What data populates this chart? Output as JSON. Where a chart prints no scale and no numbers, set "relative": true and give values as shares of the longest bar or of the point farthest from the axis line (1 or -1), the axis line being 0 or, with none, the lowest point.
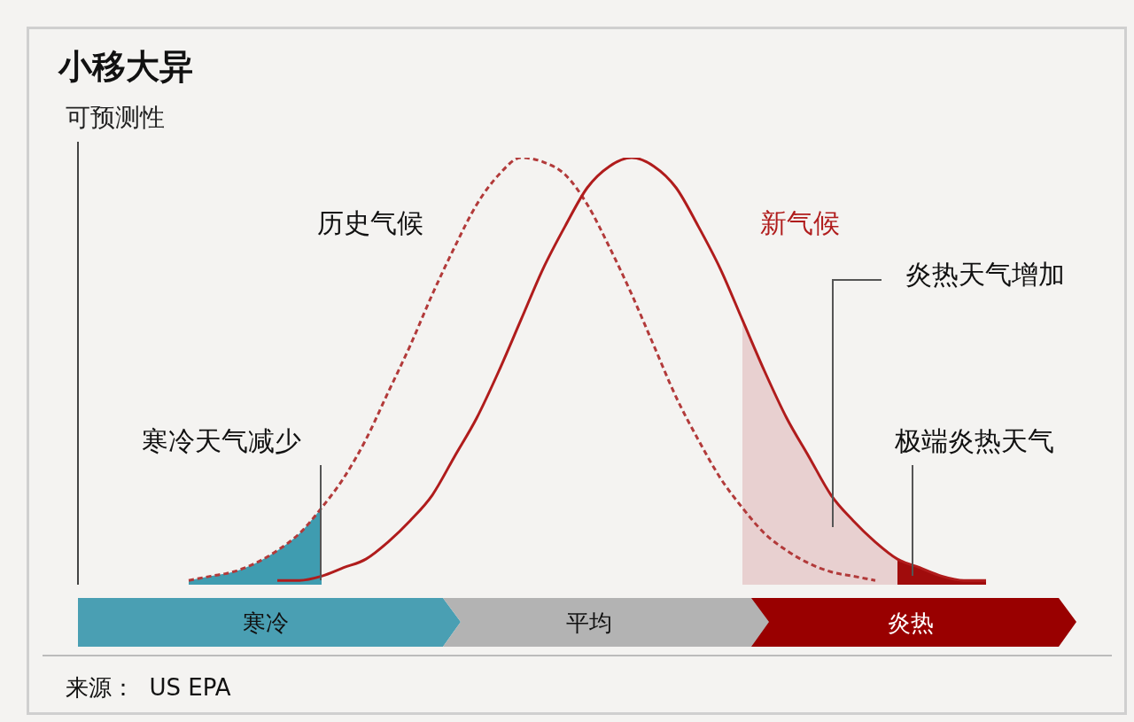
{
  "chart_data": {
    "type": "line",
    "title": "小移大异",
    "ylabel": "可预测性",
    "relative": true,
    "categories": [
      null,
      null,
      null,
      null,
      null,
      null,
      null,
      null,
      null,
      null,
      null,
      null,
      null,
      null,
      null,
      null,
      null,
      null,
      null,
      null,
      null,
      null,
      null,
      null,
      null,
      null,
      null,
      null,
      null,
      null,
      null,
      null,
      null,
      null,
      null,
      null,
      null,
      null,
      null,
      null,
      null,
      null,
      null,
      null,
      null
    ],
    "series": [
      {
        "name": "历史气候",
        "line_style": "dashed",
        "color": "#b23a3a",
        "values": [
          null,
          null,
          null,
          null,
          null,
          0.01,
          0.02,
          0.03,
          0.05,
          0.08,
          0.12,
          0.18,
          0.25,
          0.34,
          0.45,
          0.56,
          0.68,
          0.79,
          0.89,
          0.96,
          1.0,
          0.99,
          0.96,
          0.89,
          0.79,
          0.68,
          0.56,
          0.44,
          0.34,
          0.25,
          0.18,
          0.12,
          0.08,
          0.05,
          0.03,
          0.02,
          0.01,
          null,
          null,
          null,
          null,
          null,
          null,
          null,
          null
        ]
      },
      {
        "name": "新气候",
        "line_style": "solid",
        "color": "#b01c1c",
        "values": [
          null,
          null,
          null,
          null,
          null,
          null,
          null,
          null,
          null,
          0.01,
          0.01,
          0.02,
          0.04,
          0.06,
          0.1,
          0.15,
          0.21,
          0.3,
          0.39,
          0.5,
          0.62,
          0.74,
          0.84,
          0.93,
          0.98,
          1.0,
          0.98,
          0.93,
          0.84,
          0.74,
          0.62,
          0.5,
          0.39,
          0.3,
          0.21,
          0.15,
          0.1,
          0.06,
          0.04,
          0.02,
          0.01,
          0.01,
          null,
          null,
          null
        ]
      },
      {
        "name": "寒冷天气减少",
        "type": "area",
        "color": "#3f9cb0",
        "values": [
          null,
          null,
          null,
          null,
          null,
          0.01,
          0.02,
          0.03,
          0.05,
          0.08,
          0.12,
          0.18,
          null,
          null,
          null,
          null,
          null,
          null,
          null,
          null,
          null,
          null,
          null,
          null,
          null,
          null,
          null,
          null,
          null,
          null,
          null,
          null,
          null,
          null,
          null,
          null,
          null,
          null,
          null,
          null,
          null,
          null,
          null,
          null,
          null
        ]
      },
      {
        "name": "炎热天气增加",
        "type": "area",
        "color": "#e8d0d0",
        "values": [
          null,
          null,
          null,
          null,
          null,
          null,
          null,
          null,
          null,
          null,
          null,
          null,
          null,
          null,
          null,
          null,
          null,
          null,
          null,
          null,
          null,
          null,
          null,
          null,
          null,
          null,
          null,
          null,
          null,
          null,
          0.62,
          0.5,
          0.39,
          0.3,
          0.21,
          0.15,
          0.1,
          0.06,
          null,
          null,
          null,
          null,
          null,
          null,
          null
        ]
      },
      {
        "name": "极端炎热天气",
        "type": "area",
        "color": "#a00c0c",
        "values": [
          null,
          null,
          null,
          null,
          null,
          null,
          null,
          null,
          null,
          null,
          null,
          null,
          null,
          null,
          null,
          null,
          null,
          null,
          null,
          null,
          null,
          null,
          null,
          null,
          null,
          null,
          null,
          null,
          null,
          null,
          null,
          null,
          null,
          null,
          null,
          null,
          null,
          0.06,
          0.04,
          0.02,
          0.01,
          0.01,
          null,
          null,
          null
        ]
      }
    ],
    "annotations": [
      "寒冷",
      "平均",
      "炎热",
      "来源：  US EPA"
    ]
  }
}
